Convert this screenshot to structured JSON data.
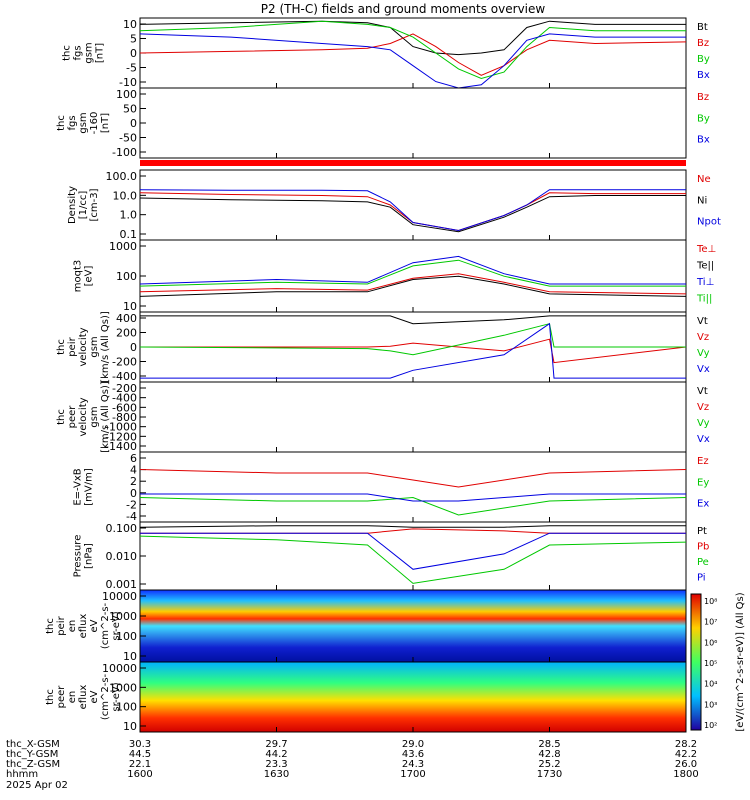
{
  "title": "P2 (TH-C) fields and ground moments overview",
  "date_label": "2025 Apr 02",
  "ephemeris": {
    "row_labels": [
      "thc_X-GSM",
      "thc_Y-GSM",
      "thc_Z-GSM",
      "hhmm"
    ],
    "columns": [
      [
        "30.3",
        "44.5",
        "22.1",
        "1600"
      ],
      [
        "29.7",
        "44.2",
        "23.3",
        "1630"
      ],
      [
        "29.0",
        "43.6",
        "24.3",
        "1700"
      ],
      [
        "28.5",
        "42.8",
        "25.2",
        "1730"
      ],
      [
        "28.2",
        "42.2",
        "26.0",
        "1800"
      ]
    ]
  },
  "colors": {
    "black": "#000000",
    "red": "#e00000",
    "green": "#00c800",
    "blue": "#0000e0"
  },
  "colorbar_label": "[eV/(cm^2-s-sr-eV)] (All Qs)",
  "colorbar_ticks": [
    "10⁸",
    "10⁷",
    "10⁶",
    "10⁵",
    "10⁴",
    "10³",
    "10²"
  ],
  "chart_data": [
    {
      "type": "line",
      "ylabel": [
        "thc",
        "fgs",
        "gsm",
        "[nT]"
      ],
      "yticks": [
        "10",
        "5",
        "0",
        "-5",
        "-10"
      ],
      "ylim": [
        -10,
        12
      ],
      "series": [
        {
          "name": "Bt",
          "color": "#000000",
          "x": [
            1600,
            1620,
            1640,
            1650,
            1655,
            1700,
            1705,
            1710,
            1715,
            1720,
            1725,
            1730,
            1740,
            1800
          ],
          "values": [
            10,
            10.5,
            11,
            10.5,
            9,
            3,
            1,
            0.5,
            1,
            2,
            9,
            11,
            10,
            10
          ]
        },
        {
          "name": "Bz",
          "color": "#e00000",
          "x": [
            1600,
            1620,
            1640,
            1650,
            1655,
            1700,
            1705,
            1710,
            1715,
            1720,
            1725,
            1730,
            1740,
            1800
          ],
          "values": [
            1,
            1.5,
            2,
            2.5,
            4,
            7,
            3,
            -2,
            -6,
            -3,
            2,
            5,
            4,
            4.5
          ]
        },
        {
          "name": "By",
          "color": "#00c800",
          "x": [
            1600,
            1620,
            1640,
            1650,
            1655,
            1700,
            1705,
            1710,
            1715,
            1720,
            1725,
            1730,
            1740,
            1800
          ],
          "values": [
            8,
            9,
            11,
            10,
            9,
            6,
            1,
            -4,
            -7,
            -5,
            3,
            9,
            8,
            8
          ]
        },
        {
          "name": "Bx",
          "color": "#0000e0",
          "x": [
            1600,
            1620,
            1640,
            1650,
            1655,
            1700,
            1705,
            1710,
            1715,
            1720,
            1725,
            1730,
            1740,
            1800
          ],
          "values": [
            7,
            6,
            4,
            3,
            2,
            -3,
            -8,
            -10,
            -9,
            -3,
            5,
            7,
            6,
            6
          ]
        }
      ]
    },
    {
      "type": "line",
      "ylabel": [
        "thc",
        "fgs",
        "gsm",
        "-160",
        "[nT]"
      ],
      "yticks": [
        "100",
        "50",
        "0",
        "-50",
        "-100"
      ],
      "ylim": [
        -130,
        110
      ],
      "series": [
        {
          "name": "Bz",
          "color": "#e00000",
          "x": [],
          "values": []
        },
        {
          "name": "By",
          "color": "#00c800",
          "x": [],
          "values": []
        },
        {
          "name": "Bx",
          "color": "#0000e0",
          "x": [],
          "values": []
        }
      ]
    },
    {
      "type": "line",
      "ylabel": [
        "Density",
        "[1/cc]",
        "[cm-3]"
      ],
      "yticks": [
        "100.0",
        "10.0",
        "1.0",
        "0.1"
      ],
      "log": true,
      "ylim": [
        0.02,
        200
      ],
      "series": [
        {
          "name": "Ne",
          "color": "#e00000",
          "x": [
            1600,
            1620,
            1640,
            1650,
            1655,
            1700,
            1710,
            1720,
            1725,
            1730,
            1740,
            1800
          ],
          "values": [
            10,
            8,
            7,
            6,
            2,
            0.2,
            0.07,
            0.5,
            2,
            10,
            9,
            9
          ]
        },
        {
          "name": "Ni",
          "color": "#000000",
          "x": [
            1600,
            1620,
            1640,
            1650,
            1655,
            1700,
            1710,
            1720,
            1725,
            1730,
            1740,
            1800
          ],
          "values": [
            5,
            4,
            3.5,
            3,
            1.5,
            0.15,
            0.06,
            0.4,
            1.5,
            6,
            7,
            7
          ]
        },
        {
          "name": "Npot",
          "color": "#0000e0",
          "x": [
            1600,
            1620,
            1640,
            1650,
            1655,
            1700,
            1710,
            1720,
            1725,
            1730,
            1740,
            1800
          ],
          "values": [
            15,
            14,
            14,
            13,
            3,
            0.2,
            0.07,
            0.5,
            2,
            15,
            15,
            15
          ]
        }
      ]
    },
    {
      "type": "line",
      "ylabel": [
        "moqt3",
        "[eV]"
      ],
      "yticks": [
        "1000",
        "100",
        "10"
      ],
      "log": true,
      "ylim": [
        5,
        3000
      ],
      "series": [
        {
          "name": "Te⊥",
          "color": "#e00000",
          "x": [
            1600,
            1630,
            1650,
            1700,
            1710,
            1720,
            1730,
            1800
          ],
          "values": [
            30,
            40,
            35,
            100,
            150,
            70,
            30,
            25
          ]
        },
        {
          "name": "Te||",
          "color": "#000000",
          "x": [
            1600,
            1630,
            1650,
            1700,
            1710,
            1720,
            1730,
            1800
          ],
          "values": [
            20,
            30,
            30,
            90,
            120,
            60,
            25,
            20
          ]
        },
        {
          "name": "Ti⊥",
          "color": "#0000e0",
          "x": [
            1600,
            1630,
            1650,
            1700,
            1710,
            1720,
            1730,
            1800
          ],
          "values": [
            60,
            90,
            70,
            400,
            700,
            150,
            60,
            60
          ]
        },
        {
          "name": "Ti||",
          "color": "#00c800",
          "x": [
            1600,
            1630,
            1650,
            1700,
            1710,
            1720,
            1730,
            1800
          ],
          "values": [
            50,
            70,
            60,
            300,
            500,
            120,
            50,
            50
          ]
        }
      ]
    },
    {
      "type": "line",
      "ylabel": [
        "thc",
        "peir",
        "velocity",
        "gsm",
        "[km/s (All Qs)]"
      ],
      "yticks": [
        "400",
        "200",
        "0",
        "-200",
        "-400"
      ],
      "ylim": [
        -450,
        450
      ],
      "series": [
        {
          "name": "Vt",
          "color": "#000000",
          "x": [
            1600,
            1650,
            1655,
            1700,
            1720,
            1730,
            1731,
            1800
          ],
          "values": [
            400,
            400,
            400,
            300,
            350,
            400,
            400,
            400
          ]
        },
        {
          "name": "Vz",
          "color": "#e00000",
          "x": [
            1600,
            1650,
            1655,
            1700,
            1720,
            1730,
            1731,
            1800
          ],
          "values": [
            0,
            0,
            10,
            50,
            -50,
            100,
            -200,
            0
          ]
        },
        {
          "name": "Vy",
          "color": "#00c800",
          "x": [
            1600,
            1650,
            1655,
            1700,
            1720,
            1730,
            1731,
            1800
          ],
          "values": [
            0,
            -20,
            -50,
            -100,
            150,
            300,
            0,
            0
          ]
        },
        {
          "name": "Vx",
          "color": "#0000e0",
          "x": [
            1600,
            1650,
            1655,
            1700,
            1720,
            1730,
            1731,
            1800
          ],
          "values": [
            -400,
            -400,
            -400,
            -300,
            -100,
            300,
            -400,
            -400
          ]
        }
      ]
    },
    {
      "type": "line",
      "ylabel": [
        "thc",
        "peer",
        "velocity",
        "gsm",
        "[km/s (All Qs)]"
      ],
      "yticks": [
        "-200",
        "-400",
        "-600",
        "-800",
        "-1000",
        "-1200",
        "-1400"
      ],
      "ylim": [
        -1500,
        -150
      ],
      "series": [
        {
          "name": "Vt",
          "color": "#000000",
          "x": [],
          "values": []
        },
        {
          "name": "Vz",
          "color": "#e00000",
          "x": [],
          "values": []
        },
        {
          "name": "Vy",
          "color": "#00c800",
          "x": [],
          "values": []
        },
        {
          "name": "Vx",
          "color": "#0000e0",
          "x": [],
          "values": []
        }
      ]
    },
    {
      "type": "line",
      "ylabel": [
        "E=-VxB",
        "[mV/m]"
      ],
      "yticks": [
        "6",
        "4",
        "2",
        "0",
        "-2",
        "-4"
      ],
      "ylim": [
        -4,
        6
      ],
      "series": [
        {
          "name": "Ez",
          "color": "#e00000",
          "x": [
            1600,
            1630,
            1650,
            1700,
            1710,
            1730,
            1800
          ],
          "values": [
            3.5,
            3,
            3,
            2,
            1,
            3,
            3.5
          ]
        },
        {
          "name": "Ey",
          "color": "#00c800",
          "x": [
            1600,
            1630,
            1650,
            1700,
            1710,
            1730,
            1800
          ],
          "values": [
            -0.5,
            -1,
            -1,
            -0.5,
            -3,
            -1,
            -0.5
          ]
        },
        {
          "name": "Ex",
          "color": "#0000e0",
          "x": [
            1600,
            1630,
            1650,
            1700,
            1710,
            1730,
            1800
          ],
          "values": [
            0,
            0,
            0,
            -1,
            -1,
            0,
            0
          ]
        }
      ]
    },
    {
      "type": "line",
      "ylabel": [
        "Pressure",
        "[nPa]"
      ],
      "yticks": [
        "0.100",
        "0.010",
        "0.001"
      ],
      "log": true,
      "ylim": [
        0.0006,
        0.12
      ],
      "series": [
        {
          "name": "Pt",
          "color": "#000000",
          "x": [
            1600,
            1630,
            1650,
            1700,
            1720,
            1730,
            1800
          ],
          "values": [
            0.08,
            0.09,
            0.09,
            0.08,
            0.08,
            0.09,
            0.09
          ]
        },
        {
          "name": "Pb",
          "color": "#e00000",
          "x": [
            1600,
            1630,
            1650,
            1700,
            1720,
            1730,
            1800
          ],
          "values": [
            0.05,
            0.05,
            0.05,
            0.07,
            0.06,
            0.05,
            0.05
          ]
        },
        {
          "name": "Pe",
          "color": "#00c800",
          "x": [
            1600,
            1630,
            1650,
            1700,
            1720,
            1730,
            1800
          ],
          "values": [
            0.04,
            0.03,
            0.02,
            0.001,
            0.003,
            0.02,
            0.025
          ]
        },
        {
          "name": "Pi",
          "color": "#0000e0",
          "x": [
            1600,
            1630,
            1650,
            1700,
            1720,
            1730,
            1800
          ],
          "values": [
            0.05,
            0.05,
            0.05,
            0.003,
            0.01,
            0.05,
            0.05
          ]
        }
      ]
    },
    {
      "type": "heatmap",
      "ylabel": [
        "thc",
        "peir",
        "en",
        "eflux",
        "eV",
        "(cm^2-s-",
        "sr-eV)"
      ],
      "yticks": [
        "10000",
        "1000",
        "100",
        "10"
      ],
      "log": true,
      "ylim": [
        6,
        15000
      ]
    },
    {
      "type": "heatmap",
      "ylabel": [
        "thc",
        "peer",
        "en",
        "eflux",
        "eV",
        "(cm^2-s-",
        "sr-eV)"
      ],
      "yticks": [
        "10000",
        "1000",
        "100",
        "10"
      ],
      "log": true,
      "ylim": [
        6,
        15000
      ]
    }
  ]
}
